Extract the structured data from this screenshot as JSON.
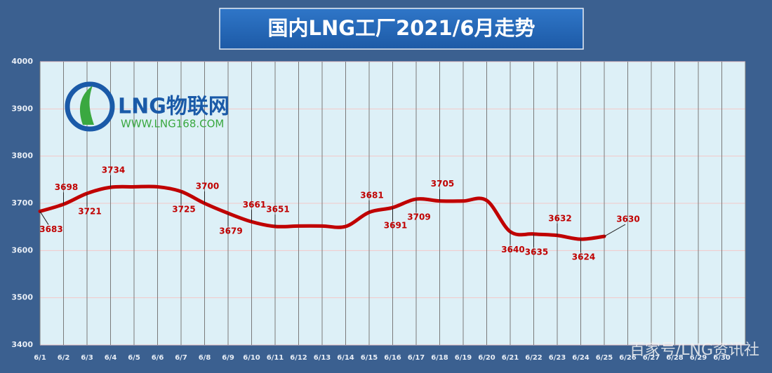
{
  "chart_data": {
    "type": "line",
    "title": "国内LNG工厂2021/6月走势",
    "categories": [
      "6/1",
      "6/2",
      "6/3",
      "6/4",
      "6/5",
      "6/6",
      "6/7",
      "6/8",
      "6/9",
      "6/10",
      "6/11",
      "6/12",
      "6/13",
      "6/14",
      "6/15",
      "6/16",
      "6/17",
      "6/18",
      "6/19",
      "6/20",
      "6/21",
      "6/22",
      "6/23",
      "6/24",
      "6/25",
      "6/26",
      "6/27",
      "6/28",
      "6/29",
      "6/30"
    ],
    "series": [
      {
        "name": "LNG",
        "color": "#c00000",
        "values": [
          3683,
          3698,
          3721,
          3734,
          3735,
          3735,
          3725,
          3700,
          3679,
          3661,
          3651,
          3652,
          3652,
          3651,
          3681,
          3691,
          3709,
          3705,
          3705,
          3706,
          3640,
          3635,
          3632,
          3624,
          3630,
          null,
          null,
          null,
          null,
          null
        ],
        "value_labels": [
          "3683",
          "3698",
          "3721",
          "3734",
          null,
          null,
          "3725",
          "3700",
          "3679",
          "3661",
          "3651",
          null,
          null,
          null,
          "3681",
          "3691",
          "3709",
          "3705",
          null,
          null,
          "3640",
          "3635",
          "3632",
          "3624",
          "3630",
          null,
          null,
          null,
          null,
          null
        ]
      }
    ],
    "ylim": [
      3400,
      4000
    ],
    "yticks": [
      3400,
      3500,
      3600,
      3700,
      3800,
      3900,
      4000
    ],
    "grid": true,
    "watermarks": [
      "LNG物联网",
      "WWW.LNG168.COM",
      "百家号/LNG资讯社"
    ]
  }
}
